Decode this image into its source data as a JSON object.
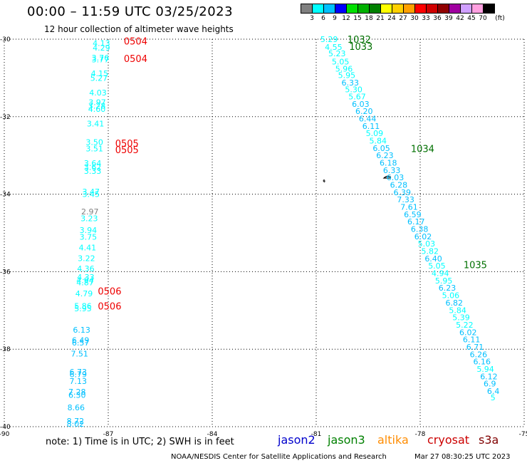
{
  "title": "00:00 – 11:59 UTC 03/25/2023",
  "subtitle": "12 hour collection of altimeter wave heights",
  "colorbar": {
    "unit": "(ft)",
    "levels": [
      "3",
      "6",
      "9",
      "12",
      "15",
      "18",
      "21",
      "24",
      "27",
      "30",
      "33",
      "36",
      "39",
      "42",
      "45",
      "70"
    ],
    "colors": [
      "#808080",
      "#00ffff",
      "#00c0ff",
      "#0000ff",
      "#00e000",
      "#00b000",
      "#008000",
      "#ffff00",
      "#ffd000",
      "#ffa000",
      "#ff0000",
      "#d00000",
      "#900000",
      "#a000a0",
      "#d0a0ff",
      "#ffa0e0",
      "#000000"
    ]
  },
  "axes": {
    "lon_ticks": [
      "-90",
      "-87",
      "-84",
      "-81",
      "-78",
      "-75"
    ],
    "lat_ticks": [
      "-30",
      "-32",
      "-34",
      "-36",
      "-38",
      "-40"
    ]
  },
  "footer": {
    "note": "note: 1) Time is in UTC; 2) SWH is in feet",
    "satellites": [
      {
        "name": "jason2",
        "color": "#0000cc"
      },
      {
        "name": "jason3",
        "color": "#008000"
      },
      {
        "name": "altika",
        "color": "#ff8c00"
      },
      {
        "name": "cryosat",
        "color": "#cc0000"
      },
      {
        "name": "s3a",
        "color": "#800000"
      }
    ],
    "credit": "NOAA/NESDIS Center for Satellite Applications and Research",
    "timestamp": "Mar 27 08:30:25 UTC 2023"
  },
  "map_data": {
    "lon_range": [
      -90,
      -75
    ],
    "lat_range": [
      -40,
      -30
    ],
    "west_track": [
      {
        "lat": -30.1,
        "lon": -87.45,
        "v": "4.13"
      },
      {
        "lat": -30.22,
        "lon": -87.45,
        "v": "4.29"
      },
      {
        "lat": -30.48,
        "lon": -87.48,
        "v": "3.76"
      },
      {
        "lat": -30.52,
        "lon": -87.48,
        "v": "3.77"
      },
      {
        "lat": -30.88,
        "lon": -87.5,
        "v": "4.15"
      },
      {
        "lat": -31.0,
        "lon": -87.52,
        "v": "5.27"
      },
      {
        "lat": -31.38,
        "lon": -87.55,
        "v": "4.03"
      },
      {
        "lat": -31.63,
        "lon": -87.57,
        "v": "3.97"
      },
      {
        "lat": -31.72,
        "lon": -87.58,
        "v": "3.28"
      },
      {
        "lat": -31.8,
        "lon": -87.58,
        "v": "4.60"
      },
      {
        "lat": -32.18,
        "lon": -87.62,
        "v": "3.41"
      },
      {
        "lat": -32.66,
        "lon": -87.65,
        "v": "3.50"
      },
      {
        "lat": -32.82,
        "lon": -87.65,
        "v": "3.51"
      },
      {
        "lat": -33.2,
        "lon": -87.7,
        "v": "3.64"
      },
      {
        "lat": -33.3,
        "lon": -87.7,
        "v": "3.62"
      },
      {
        "lat": -33.4,
        "lon": -87.7,
        "v": "3.33"
      },
      {
        "lat": -33.93,
        "lon": -87.75,
        "v": "3.47"
      },
      {
        "lat": -34.0,
        "lon": -87.75,
        "v": "3.45"
      },
      {
        "lat": -34.45,
        "lon": -87.78,
        "v": "2.97"
      },
      {
        "lat": -34.62,
        "lon": -87.8,
        "v": "3.23"
      },
      {
        "lat": -34.93,
        "lon": -87.83,
        "v": "3.94"
      },
      {
        "lat": -35.1,
        "lon": -87.83,
        "v": "3.75"
      },
      {
        "lat": -35.38,
        "lon": -87.85,
        "v": "4.41"
      },
      {
        "lat": -35.65,
        "lon": -87.88,
        "v": "3.22"
      },
      {
        "lat": -35.92,
        "lon": -87.9,
        "v": "4.36"
      },
      {
        "lat": -36.14,
        "lon": -87.9,
        "v": "4.33"
      },
      {
        "lat": -36.22,
        "lon": -87.92,
        "v": "4.94"
      },
      {
        "lat": -36.28,
        "lon": -87.92,
        "v": "4.87"
      },
      {
        "lat": -36.56,
        "lon": -87.95,
        "v": "4.79"
      },
      {
        "lat": -36.88,
        "lon": -87.98,
        "v": "5.86"
      },
      {
        "lat": -36.95,
        "lon": -87.98,
        "v": "5.95"
      },
      {
        "lat": -37.5,
        "lon": -88.02,
        "v": "6.13"
      },
      {
        "lat": -37.77,
        "lon": -88.05,
        "v": "6.49"
      },
      {
        "lat": -37.83,
        "lon": -88.05,
        "v": "6.57"
      },
      {
        "lat": -38.12,
        "lon": -88.08,
        "v": "7.51"
      },
      {
        "lat": -38.58,
        "lon": -88.12,
        "v": "6.73"
      },
      {
        "lat": -38.65,
        "lon": -88.12,
        "v": "6.79"
      },
      {
        "lat": -38.82,
        "lon": -88.12,
        "v": "7.13"
      },
      {
        "lat": -39.1,
        "lon": -88.15,
        "v": "7.28"
      },
      {
        "lat": -39.18,
        "lon": -88.15,
        "v": "6.30"
      },
      {
        "lat": -39.5,
        "lon": -88.18,
        "v": "8.66"
      },
      {
        "lat": -39.85,
        "lon": -88.2,
        "v": "8.72"
      },
      {
        "lat": -39.93,
        "lon": -88.2,
        "v": "8.02"
      }
    ],
    "east_track": [
      {
        "lat": -30.0,
        "lon": -80.88,
        "v": "5.29"
      },
      {
        "lat": -30.2,
        "lon": -80.75,
        "v": "4.55"
      },
      {
        "lat": -30.37,
        "lon": -80.65,
        "v": "5.23"
      },
      {
        "lat": -30.58,
        "lon": -80.55,
        "v": "5.05"
      },
      {
        "lat": -30.76,
        "lon": -80.45,
        "v": "5.96"
      },
      {
        "lat": -30.93,
        "lon": -80.37,
        "v": "5.95"
      },
      {
        "lat": -31.12,
        "lon": -80.27,
        "v": "6.33"
      },
      {
        "lat": -31.3,
        "lon": -80.17,
        "v": "5.30"
      },
      {
        "lat": -31.48,
        "lon": -80.07,
        "v": "5.67"
      },
      {
        "lat": -31.67,
        "lon": -79.97,
        "v": "6.03"
      },
      {
        "lat": -31.86,
        "lon": -79.87,
        "v": "6.20"
      },
      {
        "lat": -32.05,
        "lon": -79.77,
        "v": "6.44"
      },
      {
        "lat": -32.24,
        "lon": -79.67,
        "v": "6.11"
      },
      {
        "lat": -32.43,
        "lon": -79.57,
        "v": "5.09"
      },
      {
        "lat": -32.62,
        "lon": -79.47,
        "v": "5.84"
      },
      {
        "lat": -32.81,
        "lon": -79.37,
        "v": "6.05"
      },
      {
        "lat": -33.0,
        "lon": -79.27,
        "v": "6.23"
      },
      {
        "lat": -33.19,
        "lon": -79.17,
        "v": "6.18"
      },
      {
        "lat": -33.38,
        "lon": -79.07,
        "v": "6.33"
      },
      {
        "lat": -33.57,
        "lon": -78.97,
        "v": "6.03"
      },
      {
        "lat": -33.76,
        "lon": -78.87,
        "v": "6.28"
      },
      {
        "lat": -33.95,
        "lon": -78.77,
        "v": "6.39"
      },
      {
        "lat": -34.14,
        "lon": -78.67,
        "v": "7.33"
      },
      {
        "lat": -34.33,
        "lon": -78.57,
        "v": "7.61"
      },
      {
        "lat": -34.52,
        "lon": -78.47,
        "v": "6.59"
      },
      {
        "lat": -34.71,
        "lon": -78.37,
        "v": "6.17"
      },
      {
        "lat": -34.9,
        "lon": -78.27,
        "v": "6.38"
      },
      {
        "lat": -35.09,
        "lon": -78.17,
        "v": "6.02"
      },
      {
        "lat": -35.28,
        "lon": -78.07,
        "v": "5.03"
      },
      {
        "lat": -35.47,
        "lon": -77.97,
        "v": "5.82"
      },
      {
        "lat": -35.66,
        "lon": -77.87,
        "v": "6.40"
      },
      {
        "lat": -35.85,
        "lon": -77.77,
        "v": "5.05"
      },
      {
        "lat": -36.04,
        "lon": -77.67,
        "v": "4.94"
      },
      {
        "lat": -36.23,
        "lon": -77.57,
        "v": "5.95"
      },
      {
        "lat": -36.42,
        "lon": -77.47,
        "v": "6.23"
      },
      {
        "lat": -36.61,
        "lon": -77.37,
        "v": "5.06"
      },
      {
        "lat": -36.8,
        "lon": -77.27,
        "v": "6.82"
      },
      {
        "lat": -36.99,
        "lon": -77.17,
        "v": "5.84"
      },
      {
        "lat": -37.18,
        "lon": -77.07,
        "v": "5.39"
      },
      {
        "lat": -37.37,
        "lon": -76.97,
        "v": "5.22"
      },
      {
        "lat": -37.56,
        "lon": -76.87,
        "v": "6.02"
      },
      {
        "lat": -37.75,
        "lon": -76.77,
        "v": "6.11"
      },
      {
        "lat": -37.94,
        "lon": -76.67,
        "v": "6.71"
      },
      {
        "lat": -38.13,
        "lon": -76.57,
        "v": "6.26"
      },
      {
        "lat": -38.32,
        "lon": -76.47,
        "v": "6.16"
      },
      {
        "lat": -38.51,
        "lon": -76.37,
        "v": "5.94"
      },
      {
        "lat": -38.7,
        "lon": -76.27,
        "v": "6.12"
      },
      {
        "lat": -38.89,
        "lon": -76.17,
        "v": "6.9"
      },
      {
        "lat": -39.08,
        "lon": -76.07,
        "v": "6.4"
      },
      {
        "lat": -39.25,
        "lon": -75.97,
        "v": "5"
      }
    ],
    "time_labels": [
      {
        "lat": -30.05,
        "lon": -86.55,
        "t": "0504",
        "color": "#ee0000"
      },
      {
        "lat": -30.5,
        "lon": -86.55,
        "t": "0504",
        "color": "#ee0000"
      },
      {
        "lat": -32.68,
        "lon": -86.8,
        "t": "0505",
        "color": "#ee0000"
      },
      {
        "lat": -32.85,
        "lon": -86.8,
        "t": "0505",
        "color": "#ee0000"
      },
      {
        "lat": -36.5,
        "lon": -87.3,
        "t": "0506",
        "color": "#ee0000"
      },
      {
        "lat": -36.88,
        "lon": -87.3,
        "t": "0506",
        "color": "#ee0000"
      },
      {
        "lat": -30.0,
        "lon": -80.1,
        "t": "1032",
        "color": "#007000"
      },
      {
        "lat": -30.18,
        "lon": -80.05,
        "t": "1033",
        "color": "#007000"
      },
      {
        "lat": -32.82,
        "lon": -78.27,
        "t": "1034",
        "color": "#007000"
      },
      {
        "lat": -35.82,
        "lon": -76.75,
        "t": "1035",
        "color": "#007000"
      }
    ]
  }
}
